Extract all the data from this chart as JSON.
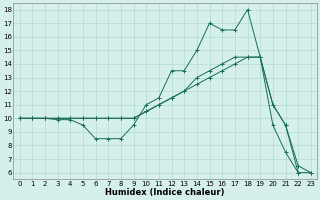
{
  "xlabel": "Humidex (Indice chaleur)",
  "bg_color": "#d5f0eb",
  "grid_color": "#aad4cc",
  "line_color": "#1a6b5a",
  "xlim": [
    -0.5,
    23.5
  ],
  "ylim": [
    5.5,
    18.5
  ],
  "xticks": [
    0,
    1,
    2,
    3,
    4,
    5,
    6,
    7,
    8,
    9,
    10,
    11,
    12,
    13,
    14,
    15,
    16,
    17,
    18,
    19,
    20,
    21,
    22,
    23
  ],
  "yticks": [
    6,
    7,
    8,
    9,
    10,
    11,
    12,
    13,
    14,
    15,
    16,
    17,
    18
  ],
  "series": [
    {
      "x": [
        0,
        1,
        2,
        3,
        4,
        5,
        6,
        7,
        8,
        9,
        10,
        11,
        12,
        13,
        14,
        15,
        16,
        17,
        18,
        19,
        20,
        21,
        22
      ],
      "y": [
        10.0,
        10.0,
        10.0,
        9.9,
        9.9,
        9.5,
        8.5,
        8.5,
        8.5,
        9.5,
        11.0,
        11.5,
        13.5,
        13.5,
        15.0,
        17.0,
        16.5,
        16.5,
        18.0,
        14.5,
        9.5,
        7.5,
        6.0
      ]
    },
    {
      "x": [
        0,
        1,
        2,
        3,
        4,
        5,
        6,
        7,
        8,
        9,
        10,
        11,
        12,
        13,
        14,
        15,
        16,
        17,
        18,
        19,
        20,
        21,
        22,
        23
      ],
      "y": [
        10.0,
        10.0,
        10.0,
        10.0,
        10.0,
        10.0,
        10.0,
        10.0,
        10.0,
        10.0,
        10.5,
        11.0,
        11.5,
        12.0,
        13.0,
        13.5,
        14.0,
        14.5,
        14.5,
        14.5,
        11.0,
        9.5,
        6.5,
        6.0
      ]
    },
    {
      "x": [
        0,
        1,
        2,
        3,
        4,
        5,
        6,
        7,
        8,
        9,
        10,
        11,
        12,
        13,
        14,
        15,
        16,
        17,
        18,
        19,
        20,
        21,
        22,
        23
      ],
      "y": [
        10.0,
        10.0,
        10.0,
        10.0,
        10.0,
        10.0,
        10.0,
        10.0,
        10.0,
        10.0,
        10.5,
        11.0,
        11.5,
        12.0,
        12.5,
        13.0,
        13.5,
        14.0,
        14.5,
        14.5,
        11.0,
        9.5,
        6.0,
        6.0
      ]
    }
  ],
  "xlabel_fontsize": 6,
  "tick_fontsize": 5,
  "linewidth": 0.7,
  "markersize": 2.5,
  "markeredgewidth": 0.7
}
